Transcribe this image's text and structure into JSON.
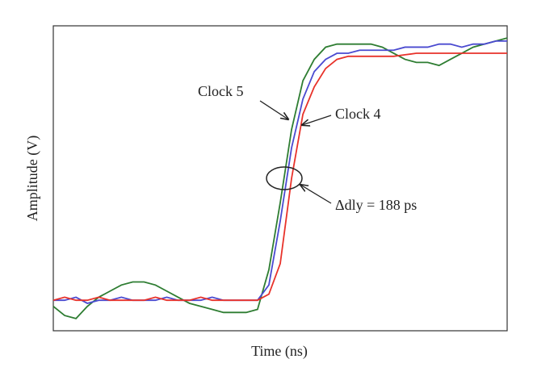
{
  "chart_data": {
    "type": "line",
    "x_label": "Time (ns)",
    "y_label": "Amplitude (V)",
    "x": [
      0,
      2.5,
      5,
      7.5,
      10,
      12.5,
      15,
      17.5,
      20,
      22.5,
      25,
      27.5,
      30,
      32.5,
      35,
      37.5,
      40,
      42.5,
      45,
      47.5,
      50,
      52.5,
      55,
      57.5,
      60,
      62.5,
      65,
      67.5,
      70,
      72.5,
      75,
      77.5,
      80,
      82.5,
      85,
      87.5,
      90,
      92.5,
      95,
      97.5,
      100
    ],
    "xlim": [
      0,
      100
    ],
    "ylim": [
      0,
      1
    ],
    "series": [
      {
        "name": "Clock 5",
        "color": "#2e7d32",
        "values": [
          0.08,
          0.05,
          0.04,
          0.08,
          0.11,
          0.13,
          0.15,
          0.16,
          0.16,
          0.15,
          0.13,
          0.11,
          0.09,
          0.08,
          0.07,
          0.06,
          0.06,
          0.06,
          0.07,
          0.2,
          0.42,
          0.66,
          0.82,
          0.89,
          0.93,
          0.94,
          0.94,
          0.94,
          0.94,
          0.93,
          0.91,
          0.89,
          0.88,
          0.88,
          0.87,
          0.89,
          0.91,
          0.93,
          0.94,
          0.95,
          0.96
        ]
      },
      {
        "color": "#4a4ad0",
        "values": [
          0.1,
          0.1,
          0.11,
          0.09,
          0.1,
          0.1,
          0.11,
          0.1,
          0.1,
          0.1,
          0.11,
          0.1,
          0.1,
          0.1,
          0.11,
          0.1,
          0.1,
          0.1,
          0.1,
          0.15,
          0.36,
          0.6,
          0.76,
          0.85,
          0.89,
          0.91,
          0.91,
          0.92,
          0.92,
          0.92,
          0.92,
          0.93,
          0.93,
          0.93,
          0.94,
          0.94,
          0.93,
          0.94,
          0.94,
          0.95,
          0.95
        ]
      },
      {
        "name": "Clock 4",
        "color": "#e8322a",
        "values": [
          0.1,
          0.11,
          0.1,
          0.1,
          0.11,
          0.1,
          0.1,
          0.1,
          0.1,
          0.11,
          0.1,
          0.1,
          0.1,
          0.11,
          0.1,
          0.1,
          0.1,
          0.1,
          0.1,
          0.12,
          0.22,
          0.5,
          0.71,
          0.8,
          0.86,
          0.89,
          0.9,
          0.9,
          0.9,
          0.9,
          0.9,
          0.905,
          0.91,
          0.91,
          0.91,
          0.91,
          0.91,
          0.91,
          0.91,
          0.91,
          0.91
        ]
      }
    ],
    "annotations": [
      "Δdly = 188 ps"
    ]
  }
}
